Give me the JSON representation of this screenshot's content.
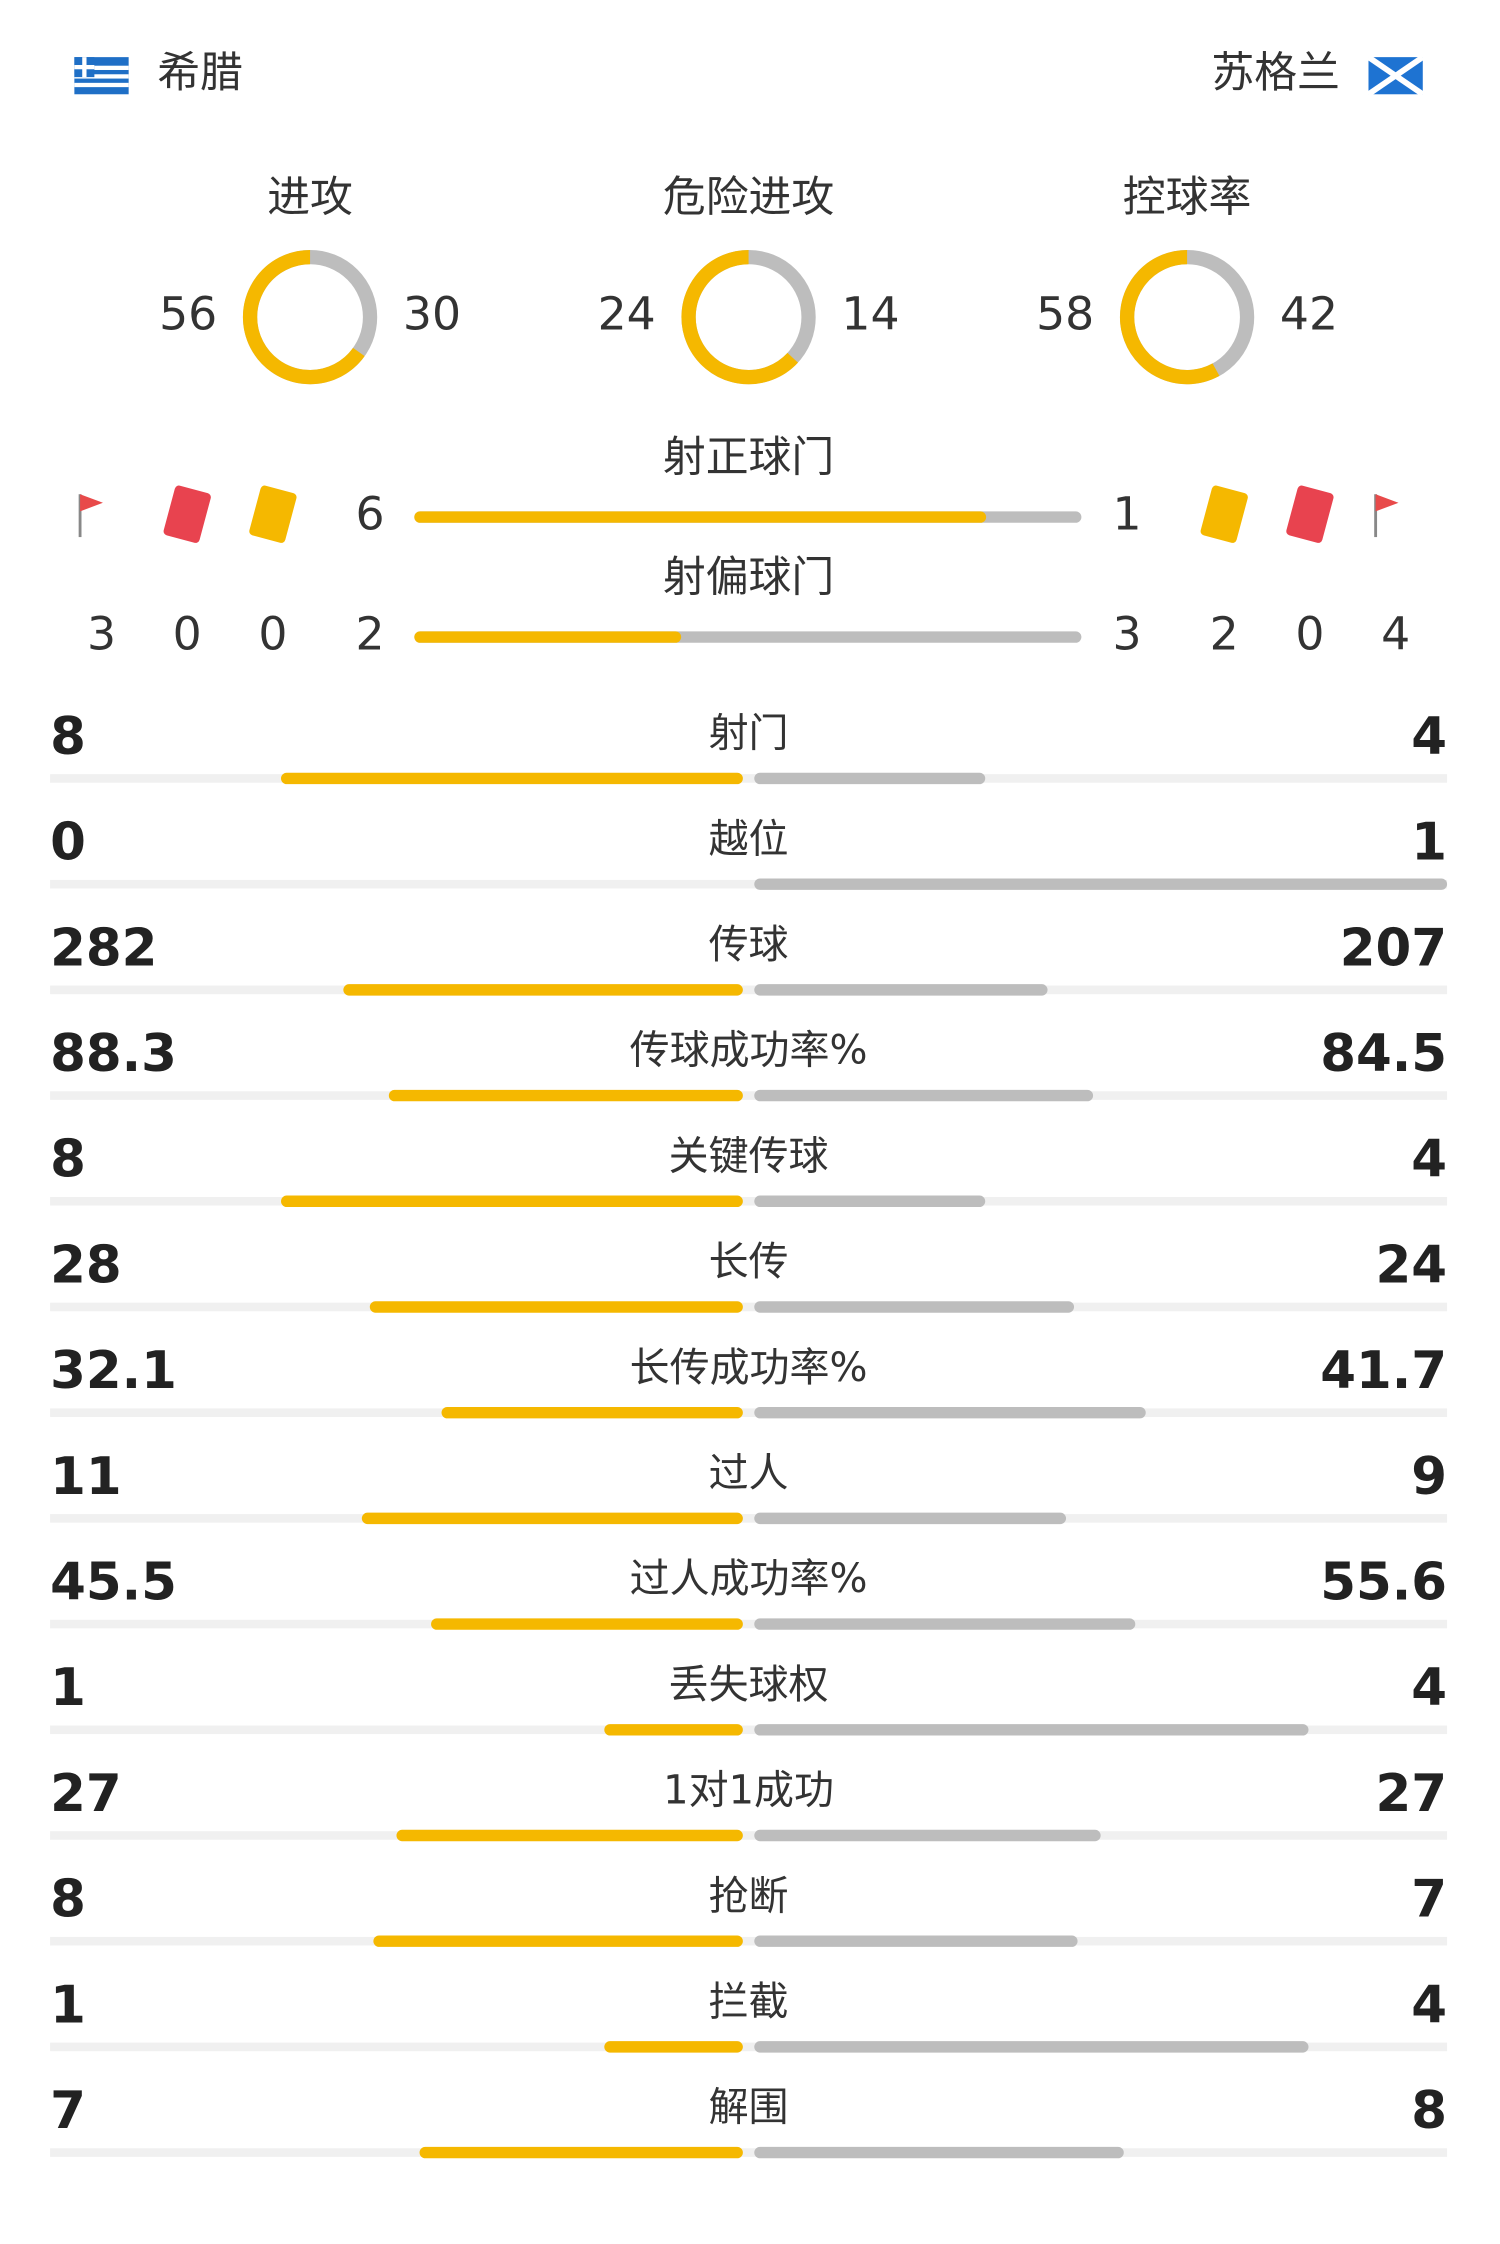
{
  "teams": {
    "home": "希腊",
    "away": "苏格兰"
  },
  "donuts": [
    {
      "label": "进攻",
      "home": 56,
      "away": 30
    },
    {
      "label": "危险进攻",
      "home": 24,
      "away": 14
    },
    {
      "label": "控球率",
      "home": 58,
      "away": 42
    }
  ],
  "shots": [
    {
      "label": "射正球门",
      "home": 6,
      "away": 1
    },
    {
      "label": "射偏球门",
      "home": 2,
      "away": 3
    }
  ],
  "cards": {
    "home": {
      "corners": 3,
      "red": 0,
      "yellow": 0
    },
    "away": {
      "yellow": 2,
      "red": 0,
      "corners": 4
    }
  },
  "rows": [
    {
      "label": "射门",
      "home": 8,
      "away": 4
    },
    {
      "label": "越位",
      "home": 0,
      "away": 1
    },
    {
      "label": "传球",
      "home": 282,
      "away": 207
    },
    {
      "label": "传球成功率%",
      "home": 88.3,
      "away": 84.5
    },
    {
      "label": "关键传球",
      "home": 8,
      "away": 4
    },
    {
      "label": "长传",
      "home": 28,
      "away": 24
    },
    {
      "label": "长传成功率%",
      "home": 32.1,
      "away": 41.7
    },
    {
      "label": "过人",
      "home": 11,
      "away": 9
    },
    {
      "label": "过人成功率%",
      "home": 45.5,
      "away": 55.6
    },
    {
      "label": "丢失球权",
      "home": 1,
      "away": 4
    },
    {
      "label": "1对1成功",
      "home": 27,
      "away": 27
    },
    {
      "label": "抢断",
      "home": 8,
      "away": 7
    },
    {
      "label": "拦截",
      "home": 1,
      "away": 4
    },
    {
      "label": "解围",
      "home": 7,
      "away": 8
    }
  ]
}
